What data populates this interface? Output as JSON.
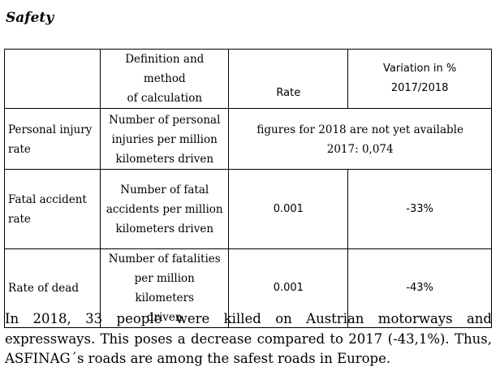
{
  "heading": "Safety",
  "table": {
    "headers": {
      "empty": "",
      "definition_line1": "Definition and method",
      "definition_line2": "of calculation",
      "rate": "Rate",
      "variation_line1": "Variation in %",
      "variation_line2": "2017/2018"
    },
    "rows": [
      {
        "label_line1": "Personal injury",
        "label_line2": "rate",
        "definition_line1": "Number of personal",
        "definition_line2": "injuries per million",
        "definition_line3": "kilometers driven",
        "merged_note_line1": "figures for 2018 are not yet available",
        "merged_note_line2": "2017: 0,074"
      },
      {
        "label_line1": "Fatal accident",
        "label_line2": "rate",
        "definition_line1": "Number of fatal",
        "definition_line2": "accidents per million",
        "definition_line3": "kilometers driven",
        "rate": "0.001",
        "variation": "-33%"
      },
      {
        "label_line1": "Rate of dead",
        "definition_line1": "Number of fatalities",
        "definition_line2": "per million kilometers",
        "definition_line3": "driven",
        "rate": "0.001",
        "variation": "-43%"
      }
    ]
  },
  "paragraph": "In 2018, 33 people were killed on Austrian motorways and expressways. This poses a decrease compared to 2017 (-43,1%). Thus, ASFINAG´s roads are among the safest roads in Europe."
}
